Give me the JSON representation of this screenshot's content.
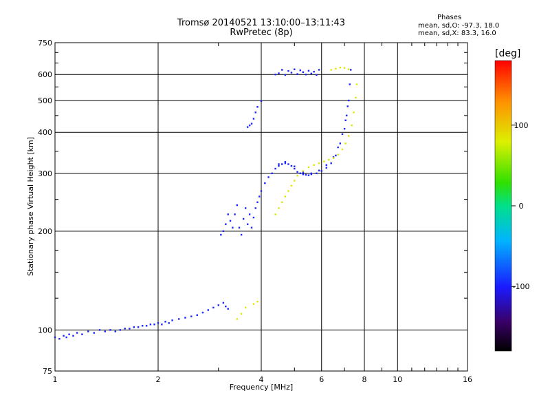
{
  "title": {
    "line1": "Tromsø 20140521 13:10:00–13:11:43",
    "line2": "RwPretec (8p)"
  },
  "phases": {
    "heading": "Phases",
    "o_line": "mean, sd,O: -97.3, 18.0",
    "x_line": "mean, sd,X:  83.3, 16.0"
  },
  "chart_data": {
    "type": "scatter",
    "title": "Tromsø 20140521 13:10:00–13:11:43",
    "subtitle": "RwPretec (8p)",
    "xlabel": "Frequency [MHz]",
    "ylabel": "Stationary phase Virtual Height [km]",
    "x_scale": "log",
    "y_scale": "log",
    "xlim": [
      1,
      16
    ],
    "ylim": [
      75,
      750
    ],
    "xticks": [
      1,
      2,
      4,
      6,
      8,
      10,
      16
    ],
    "xtick_labels": [
      "1",
      "2",
      "4",
      "6",
      "8",
      "10",
      "16"
    ],
    "yticks": [
      75,
      100,
      200,
      300,
      400,
      500,
      600,
      750
    ],
    "ytick_labels": [
      "75",
      "100",
      "200",
      "300",
      "400",
      "500",
      "600",
      "750"
    ],
    "grid": true,
    "colorbar": {
      "label": "[deg]",
      "range": [
        -180,
        180
      ],
      "ticks": [
        100,
        0,
        -100
      ],
      "tick_labels": [
        "100",
        "0",
        "-100"
      ]
    },
    "series": [
      {
        "mode": "O",
        "color_deg": -97.3,
        "points": [
          [
            1.0,
            95
          ],
          [
            1.03,
            94
          ],
          [
            1.06,
            96
          ],
          [
            1.08,
            95
          ],
          [
            1.1,
            97
          ],
          [
            1.13,
            96
          ],
          [
            1.16,
            98
          ],
          [
            1.2,
            97
          ],
          [
            1.25,
            99
          ],
          [
            1.3,
            98
          ],
          [
            1.35,
            100
          ],
          [
            1.4,
            99
          ],
          [
            1.45,
            100
          ],
          [
            1.5,
            99
          ],
          [
            1.55,
            100
          ],
          [
            1.6,
            101
          ],
          [
            1.65,
            101
          ],
          [
            1.7,
            102
          ],
          [
            1.75,
            102
          ],
          [
            1.8,
            103
          ],
          [
            1.85,
            103
          ],
          [
            1.9,
            104
          ],
          [
            1.95,
            104
          ],
          [
            2.0,
            105
          ],
          [
            2.05,
            104
          ],
          [
            2.1,
            106
          ],
          [
            2.15,
            105
          ],
          [
            2.2,
            107
          ],
          [
            2.3,
            108
          ],
          [
            2.4,
            109
          ],
          [
            2.5,
            110
          ],
          [
            2.6,
            111
          ],
          [
            2.7,
            113
          ],
          [
            2.8,
            115
          ],
          [
            2.9,
            117
          ],
          [
            3.0,
            119
          ],
          [
            3.1,
            121
          ],
          [
            3.15,
            118
          ],
          [
            3.2,
            116
          ],
          [
            3.05,
            195
          ],
          [
            3.1,
            200
          ],
          [
            3.15,
            210
          ],
          [
            3.2,
            225
          ],
          [
            3.25,
            215
          ],
          [
            3.3,
            205
          ],
          [
            3.35,
            225
          ],
          [
            3.4,
            240
          ],
          [
            3.45,
            205
          ],
          [
            3.5,
            195
          ],
          [
            3.55,
            218
          ],
          [
            3.6,
            235
          ],
          [
            3.65,
            210
          ],
          [
            3.7,
            225
          ],
          [
            3.75,
            205
          ],
          [
            3.8,
            220
          ],
          [
            3.85,
            235
          ],
          [
            3.9,
            245
          ],
          [
            3.95,
            255
          ],
          [
            4.0,
            265
          ],
          [
            4.1,
            280
          ],
          [
            4.2,
            292
          ],
          [
            4.3,
            300
          ],
          [
            4.4,
            310
          ],
          [
            4.5,
            316
          ],
          [
            4.6,
            320
          ],
          [
            4.7,
            322
          ],
          [
            4.8,
            320
          ],
          [
            4.9,
            316
          ],
          [
            5.0,
            310
          ],
          [
            5.1,
            303
          ],
          [
            5.2,
            300
          ],
          [
            5.3,
            298
          ],
          [
            5.4,
            297
          ],
          [
            5.5,
            296
          ],
          [
            5.6,
            298
          ],
          [
            5.8,
            300
          ],
          [
            6.0,
            305
          ],
          [
            6.2,
            312
          ],
          [
            6.4,
            322
          ],
          [
            6.6,
            340
          ],
          [
            6.8,
            370
          ],
          [
            7.0,
            410
          ],
          [
            7.1,
            450
          ],
          [
            7.2,
            500
          ],
          [
            7.25,
            560
          ],
          [
            7.3,
            620
          ],
          [
            4.5,
            320
          ],
          [
            4.7,
            325
          ],
          [
            5.0,
            315
          ],
          [
            5.3,
            302
          ],
          [
            5.6,
            300
          ],
          [
            5.9,
            306
          ],
          [
            6.2,
            318
          ],
          [
            6.5,
            336
          ],
          [
            6.7,
            360
          ],
          [
            6.9,
            395
          ],
          [
            7.05,
            435
          ],
          [
            7.15,
            480
          ],
          [
            3.65,
            415
          ],
          [
            3.7,
            420
          ],
          [
            3.75,
            425
          ],
          [
            3.8,
            440
          ],
          [
            3.85,
            460
          ],
          [
            3.9,
            478
          ],
          [
            4.0,
            498
          ],
          [
            4.4,
            600
          ],
          [
            4.5,
            605
          ],
          [
            4.6,
            620
          ],
          [
            4.7,
            598
          ],
          [
            4.8,
            615
          ],
          [
            4.9,
            608
          ],
          [
            5.0,
            622
          ],
          [
            5.1,
            602
          ],
          [
            5.2,
            618
          ],
          [
            5.3,
            610
          ],
          [
            5.4,
            600
          ],
          [
            5.5,
            616
          ],
          [
            5.6,
            604
          ],
          [
            5.7,
            612
          ],
          [
            5.8,
            598
          ],
          [
            5.9,
            620
          ]
        ]
      },
      {
        "mode": "X",
        "color_deg": 83.3,
        "points": [
          [
            4.4,
            225
          ],
          [
            4.5,
            235
          ],
          [
            4.6,
            245
          ],
          [
            4.7,
            255
          ],
          [
            4.8,
            265
          ],
          [
            4.9,
            275
          ],
          [
            5.0,
            285
          ],
          [
            5.1,
            295
          ],
          [
            5.3,
            305
          ],
          [
            5.5,
            313
          ],
          [
            5.7,
            318
          ],
          [
            5.9,
            322
          ],
          [
            6.1,
            326
          ],
          [
            6.3,
            330
          ],
          [
            6.5,
            334
          ],
          [
            6.7,
            342
          ],
          [
            6.9,
            355
          ],
          [
            7.05,
            370
          ],
          [
            7.2,
            390
          ],
          [
            7.35,
            420
          ],
          [
            7.45,
            460
          ],
          [
            7.55,
            510
          ],
          [
            7.6,
            560
          ],
          [
            6.4,
            620
          ],
          [
            6.6,
            625
          ],
          [
            6.8,
            630
          ],
          [
            7.0,
            628
          ],
          [
            7.2,
            622
          ],
          [
            3.4,
            108
          ],
          [
            3.5,
            112
          ],
          [
            3.6,
            117
          ],
          [
            3.8,
            120
          ],
          [
            3.9,
            122
          ]
        ]
      }
    ]
  }
}
